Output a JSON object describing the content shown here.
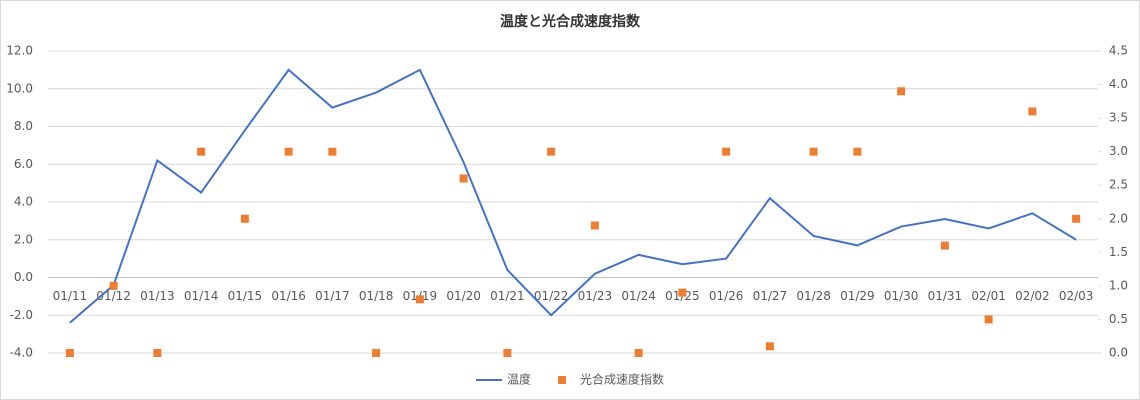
{
  "chart_data": {
    "type": "line-scatter",
    "title": "温度と光合成速度指数",
    "categories": [
      "01/11",
      "01/12",
      "01/13",
      "01/14",
      "01/15",
      "01/16",
      "01/17",
      "01/18",
      "01/19",
      "01/20",
      "01/21",
      "01/22",
      "01/23",
      "01/24",
      "01/25",
      "01/26",
      "01/27",
      "01/28",
      "01/29",
      "01/30",
      "01/31",
      "02/01",
      "02/02",
      "02/03"
    ],
    "series": [
      {
        "name": "温度",
        "color": "#4472c4",
        "type": "line",
        "values": [
          -2.4,
          -0.4,
          6.2,
          4.5,
          7.8,
          11.0,
          9.0,
          9.8,
          11.0,
          6.1,
          0.4,
          -2.0,
          0.2,
          1.2,
          0.7,
          1.0,
          4.2,
          2.2,
          1.7,
          2.7,
          3.1,
          2.6,
          3.4,
          2.0
        ]
      },
      {
        "name": "光合成速度指数",
        "color": "#ed7d31",
        "type": "scatter",
        "axis": "y2",
        "values": [
          0,
          1.0,
          0,
          3.0,
          2.0,
          3.0,
          3.0,
          0,
          0.8,
          2.6,
          0,
          3.0,
          1.9,
          0,
          0.9,
          3.0,
          0.1,
          3.0,
          3.0,
          3.9,
          1.6,
          0.5,
          3.6,
          2.0
        ]
      }
    ],
    "ylim": [
      -4,
      12
    ],
    "yticks": [
      {
        "value": -4,
        "label": "-4.0"
      },
      {
        "value": -2,
        "label": "-2.0"
      },
      {
        "value": 0,
        "label": "0.0"
      },
      {
        "value": 2,
        "label": "2.0"
      },
      {
        "value": 4,
        "label": "4.0"
      },
      {
        "value": 6,
        "label": "6.0"
      },
      {
        "value": 8,
        "label": "8.0"
      },
      {
        "value": 10,
        "label": "10.0"
      },
      {
        "value": 12,
        "label": "12.0"
      }
    ],
    "y2lim": [
      0,
      4.5
    ],
    "y2ticks": [
      {
        "value": 0,
        "label": "0.0"
      },
      0.5,
      {
        "value": 1,
        "label": "1.0"
      },
      1.5,
      {
        "value": 2,
        "label": "2.0"
      },
      2.5,
      {
        "value": 3,
        "label": "3.0"
      },
      3.5,
      {
        "value": 4,
        "label": "4.0"
      },
      4.5
    ],
    "grid": true,
    "legend": "bottom"
  }
}
